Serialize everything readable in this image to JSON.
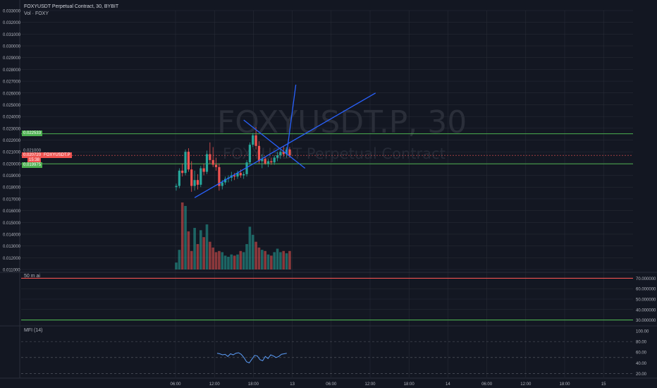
{
  "header": {
    "title": "FOXYUSDT Perpetual Contract, 30, BYBIT",
    "volume_label": "Vol · FOXY"
  },
  "watermark": {
    "symbol": "FOXYUSDT.P, 30",
    "name": "FOXYUSDT Perpetual Contract"
  },
  "price_tags": {
    "upper_level": "0.022533",
    "last_price": "0.020720",
    "countdown": "15:38",
    "symbol": "FOXYUSDT.P",
    "lower_level": "0.019975",
    "faded_label": "0.021000"
  },
  "indicators": {
    "ema_label": "50 m ai",
    "mfi_label": "MFI (14)"
  },
  "colors": {
    "background": "#131722",
    "up": "#26a69a",
    "down": "#ef5350",
    "trendline": "#2962ff",
    "level_line": "#4caf50",
    "grid": "#2a2e39"
  },
  "chart_data": [
    {
      "type": "candlestick",
      "title": "FOXYUSDT Perpetual Contract, 30, BYBIT",
      "ylim": [
        0.011,
        0.033
      ],
      "y_ticks": [
        "0.033000",
        "0.032000",
        "0.031000",
        "0.030000",
        "0.029000",
        "0.028000",
        "0.027000",
        "0.026000",
        "0.025000",
        "0.024000",
        "0.023000",
        "0.022000",
        "0.021000",
        "0.020000",
        "0.019000",
        "0.018000",
        "0.017000",
        "0.016000",
        "0.015000",
        "0.014000",
        "0.013000",
        "0.012000",
        "0.011000"
      ],
      "x_tick_labels": [
        "06:00",
        "12:00",
        "18:00",
        "13",
        "06:00",
        "12:00",
        "18:00",
        "14",
        "06:00",
        "12:00",
        "18:00",
        "15"
      ],
      "candles": [
        {
          "o": 0.018,
          "h": 0.0183,
          "l": 0.0177,
          "c": 0.0181
        },
        {
          "o": 0.0181,
          "h": 0.0196,
          "l": 0.0179,
          "c": 0.0194
        },
        {
          "o": 0.0194,
          "h": 0.02,
          "l": 0.0189,
          "c": 0.0192
        },
        {
          "o": 0.0192,
          "h": 0.0212,
          "l": 0.019,
          "c": 0.021
        },
        {
          "o": 0.021,
          "h": 0.0213,
          "l": 0.0193,
          "c": 0.0195
        },
        {
          "o": 0.0195,
          "h": 0.0202,
          "l": 0.0176,
          "c": 0.0181
        },
        {
          "o": 0.0181,
          "h": 0.0194,
          "l": 0.0177,
          "c": 0.0186
        },
        {
          "o": 0.0186,
          "h": 0.0191,
          "l": 0.0178,
          "c": 0.0182
        },
        {
          "o": 0.0182,
          "h": 0.0198,
          "l": 0.018,
          "c": 0.0196
        },
        {
          "o": 0.0196,
          "h": 0.02,
          "l": 0.019,
          "c": 0.0193
        },
        {
          "o": 0.0193,
          "h": 0.0211,
          "l": 0.0191,
          "c": 0.0208
        },
        {
          "o": 0.0208,
          "h": 0.0218,
          "l": 0.02,
          "c": 0.0203
        },
        {
          "o": 0.0203,
          "h": 0.0214,
          "l": 0.0197,
          "c": 0.0199
        },
        {
          "o": 0.0199,
          "h": 0.0205,
          "l": 0.0194,
          "c": 0.0197
        },
        {
          "o": 0.0197,
          "h": 0.02,
          "l": 0.0177,
          "c": 0.0181
        },
        {
          "o": 0.0181,
          "h": 0.0186,
          "l": 0.0178,
          "c": 0.0184
        },
        {
          "o": 0.0184,
          "h": 0.0189,
          "l": 0.0182,
          "c": 0.0187
        },
        {
          "o": 0.0187,
          "h": 0.019,
          "l": 0.0184,
          "c": 0.0188
        },
        {
          "o": 0.0188,
          "h": 0.0193,
          "l": 0.0185,
          "c": 0.019
        },
        {
          "o": 0.019,
          "h": 0.0192,
          "l": 0.0186,
          "c": 0.0189
        },
        {
          "o": 0.0189,
          "h": 0.0194,
          "l": 0.0187,
          "c": 0.0192
        },
        {
          "o": 0.0192,
          "h": 0.0195,
          "l": 0.0188,
          "c": 0.019
        },
        {
          "o": 0.019,
          "h": 0.0193,
          "l": 0.0187,
          "c": 0.0191
        },
        {
          "o": 0.0191,
          "h": 0.0203,
          "l": 0.0189,
          "c": 0.0201
        },
        {
          "o": 0.0201,
          "h": 0.0218,
          "l": 0.0199,
          "c": 0.0216
        },
        {
          "o": 0.0216,
          "h": 0.0226,
          "l": 0.0214,
          "c": 0.0224
        },
        {
          "o": 0.0224,
          "h": 0.0231,
          "l": 0.0212,
          "c": 0.0215
        },
        {
          "o": 0.0215,
          "h": 0.0219,
          "l": 0.02,
          "c": 0.0202
        },
        {
          "o": 0.0202,
          "h": 0.0208,
          "l": 0.0196,
          "c": 0.0204
        },
        {
          "o": 0.0204,
          "h": 0.0206,
          "l": 0.0199,
          "c": 0.02
        },
        {
          "o": 0.02,
          "h": 0.0204,
          "l": 0.0197,
          "c": 0.0202
        },
        {
          "o": 0.0202,
          "h": 0.0205,
          "l": 0.0199,
          "c": 0.0201
        },
        {
          "o": 0.0201,
          "h": 0.0207,
          "l": 0.0199,
          "c": 0.0205
        },
        {
          "o": 0.0205,
          "h": 0.021,
          "l": 0.0202,
          "c": 0.0207
        },
        {
          "o": 0.0207,
          "h": 0.0212,
          "l": 0.0204,
          "c": 0.021
        },
        {
          "o": 0.021,
          "h": 0.0215,
          "l": 0.0206,
          "c": 0.0208
        },
        {
          "o": 0.0208,
          "h": 0.0214,
          "l": 0.0205,
          "c": 0.0212
        },
        {
          "o": 0.0212,
          "h": 0.0214,
          "l": 0.0205,
          "c": 0.0207
        }
      ],
      "volume": [
        0.6,
        1.7,
        5.8,
        5.5,
        3.3,
        1.6,
        3.6,
        2.2,
        3.4,
        2.8,
        3.9,
        2.4,
        1.9,
        1.5,
        1.6,
        1.5,
        1.2,
        1.1,
        1.3,
        1.2,
        1.3,
        1.6,
        1.5,
        2.2,
        3.7,
        3.0,
        2.4,
        1.9,
        1.7,
        1.6,
        1.3,
        1.2,
        1.5,
        1.8,
        1.5,
        1.6,
        1.4,
        1.6
      ],
      "horizontal_levels": [
        0.022533,
        0.019975
      ],
      "trendlines": [
        {
          "from": {
            "candle": 6,
            "price": 0.0171
          },
          "to": {
            "candle": 65,
            "price": 0.026
          }
        },
        {
          "from": {
            "candle": 22,
            "price": 0.0237
          },
          "to": {
            "candle": 42,
            "price": 0.0196
          }
        },
        {
          "from": {
            "candle": 36,
            "price": 0.0208
          },
          "to": {
            "candle": 39,
            "price": 0.0267
          }
        }
      ]
    },
    {
      "type": "line",
      "title": "50 m ai",
      "ylim": [
        27,
        73
      ],
      "y_ticks": [
        "70.000000",
        "60.000000",
        "50.000000",
        "40.000000",
        "30.000000"
      ],
      "levels": [
        70,
        30
      ]
    },
    {
      "type": "line",
      "title": "MFI (14)",
      "ylim": [
        14,
        104
      ],
      "y_ticks": [
        "100.00",
        "80.00",
        "60.00",
        "40.00",
        "20.00"
      ],
      "band_lines": [
        80,
        50,
        20
      ],
      "values": [
        58,
        57,
        55,
        56,
        52,
        57,
        55,
        58,
        59,
        56,
        50,
        42,
        40,
        47,
        54,
        53,
        46,
        44,
        52,
        48,
        55,
        53,
        50,
        52,
        56,
        57,
        58
      ]
    }
  ]
}
